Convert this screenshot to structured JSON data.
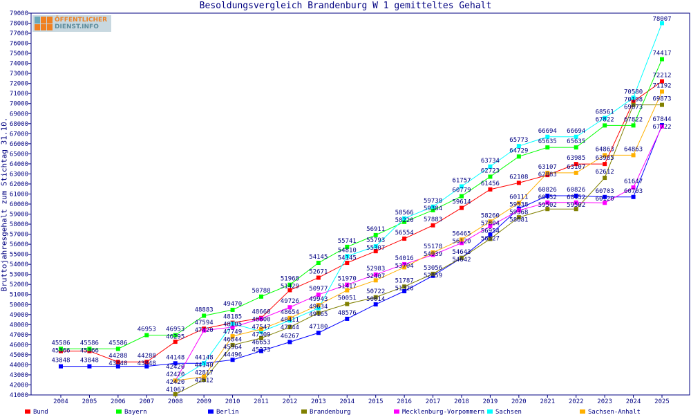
{
  "chart_data": {
    "type": "line",
    "title": "Besoldungsvergleich Brandenburg W 1 gemitteltes Gehalt",
    "xlabel": "",
    "ylabel": "Bruttojahresgehalt zum Stichtag 31.10.",
    "ylim": [
      41000,
      79000
    ],
    "ytick_step": 1000,
    "grid": false,
    "legend": "bottom",
    "logo_text": "ÖFFENTLICHER DIENST.INFO",
    "categories": [
      "2004",
      "2005",
      "2006",
      "2007",
      "2008",
      "2009",
      "2010",
      "2011",
      "2012",
      "2013",
      "2014",
      "2015",
      "2016",
      "2017",
      "2018",
      "2019",
      "2020",
      "2021",
      "2022",
      "2023",
      "2024",
      "2025"
    ],
    "series": [
      {
        "name": "Bund",
        "color": "#ff0000",
        "values": [
          45366,
          45366,
          44288,
          44288,
          46295,
          47594,
          48185,
          48660,
          51429,
          52671,
          54145,
          55307,
          56554,
          57883,
          59614,
          61456,
          62108,
          62883,
          63985,
          63985,
          70198,
          72212
        ]
      },
      {
        "name": "Bayern",
        "color": "#00ff00",
        "values": [
          45586,
          45586,
          45586,
          46953,
          46953,
          48883,
          49470,
          50788,
          51968,
          54145,
          55741,
          56911,
          58220,
          59384,
          60779,
          62723,
          64729,
          65635,
          65635,
          67822,
          67822,
          74417
        ]
      },
      {
        "name": "Berlin",
        "color": "#0000ff",
        "values": [
          43848,
          43848,
          43848,
          43848,
          44148,
          44148,
          44496,
          45373,
          46267,
          47180,
          48576,
          50014,
          51326,
          52859,
          54643,
          56954,
          59538,
          60826,
          60826,
          60703,
          60703,
          67844
        ]
      },
      {
        "name": "Brandenburg",
        "color": "#808000",
        "values": [
          null,
          null,
          null,
          null,
          41067,
          42512,
          45964,
          46653,
          47744,
          49165,
          50051,
          50722,
          51787,
          53056,
          54642,
          56527,
          58681,
          59502,
          59502,
          62612,
          69873,
          69873
        ]
      },
      {
        "name": "Mecklenburg-Vorpommern",
        "color": "#ff00ff",
        "values": [
          null,
          null,
          null,
          null,
          42420,
          47420,
          47749,
          48600,
          49726,
          50977,
          51970,
          52983,
          54016,
          54939,
          56120,
          57804,
          59368,
          60152,
          60152,
          60120,
          61647,
          67722
        ]
      },
      {
        "name": "Sachsen",
        "color": "#00ffff",
        "values": [
          null,
          null,
          null,
          null,
          42420,
          44140,
          48105,
          47309,
          48411,
          49634,
          54810,
          55793,
          58566,
          59738,
          61757,
          63734,
          65773,
          66694,
          66694,
          68561,
          70580,
          78007
        ]
      },
      {
        "name": "Sachsen-Anhalt",
        "color": "#ffb000",
        "values": [
          null,
          null,
          null,
          null,
          42420,
          42817,
          46844,
          47547,
          48654,
          49943,
          51417,
          52407,
          53704,
          55178,
          56465,
          58260,
          60111,
          63107,
          63107,
          64863,
          64863,
          71192
        ]
      }
    ]
  }
}
